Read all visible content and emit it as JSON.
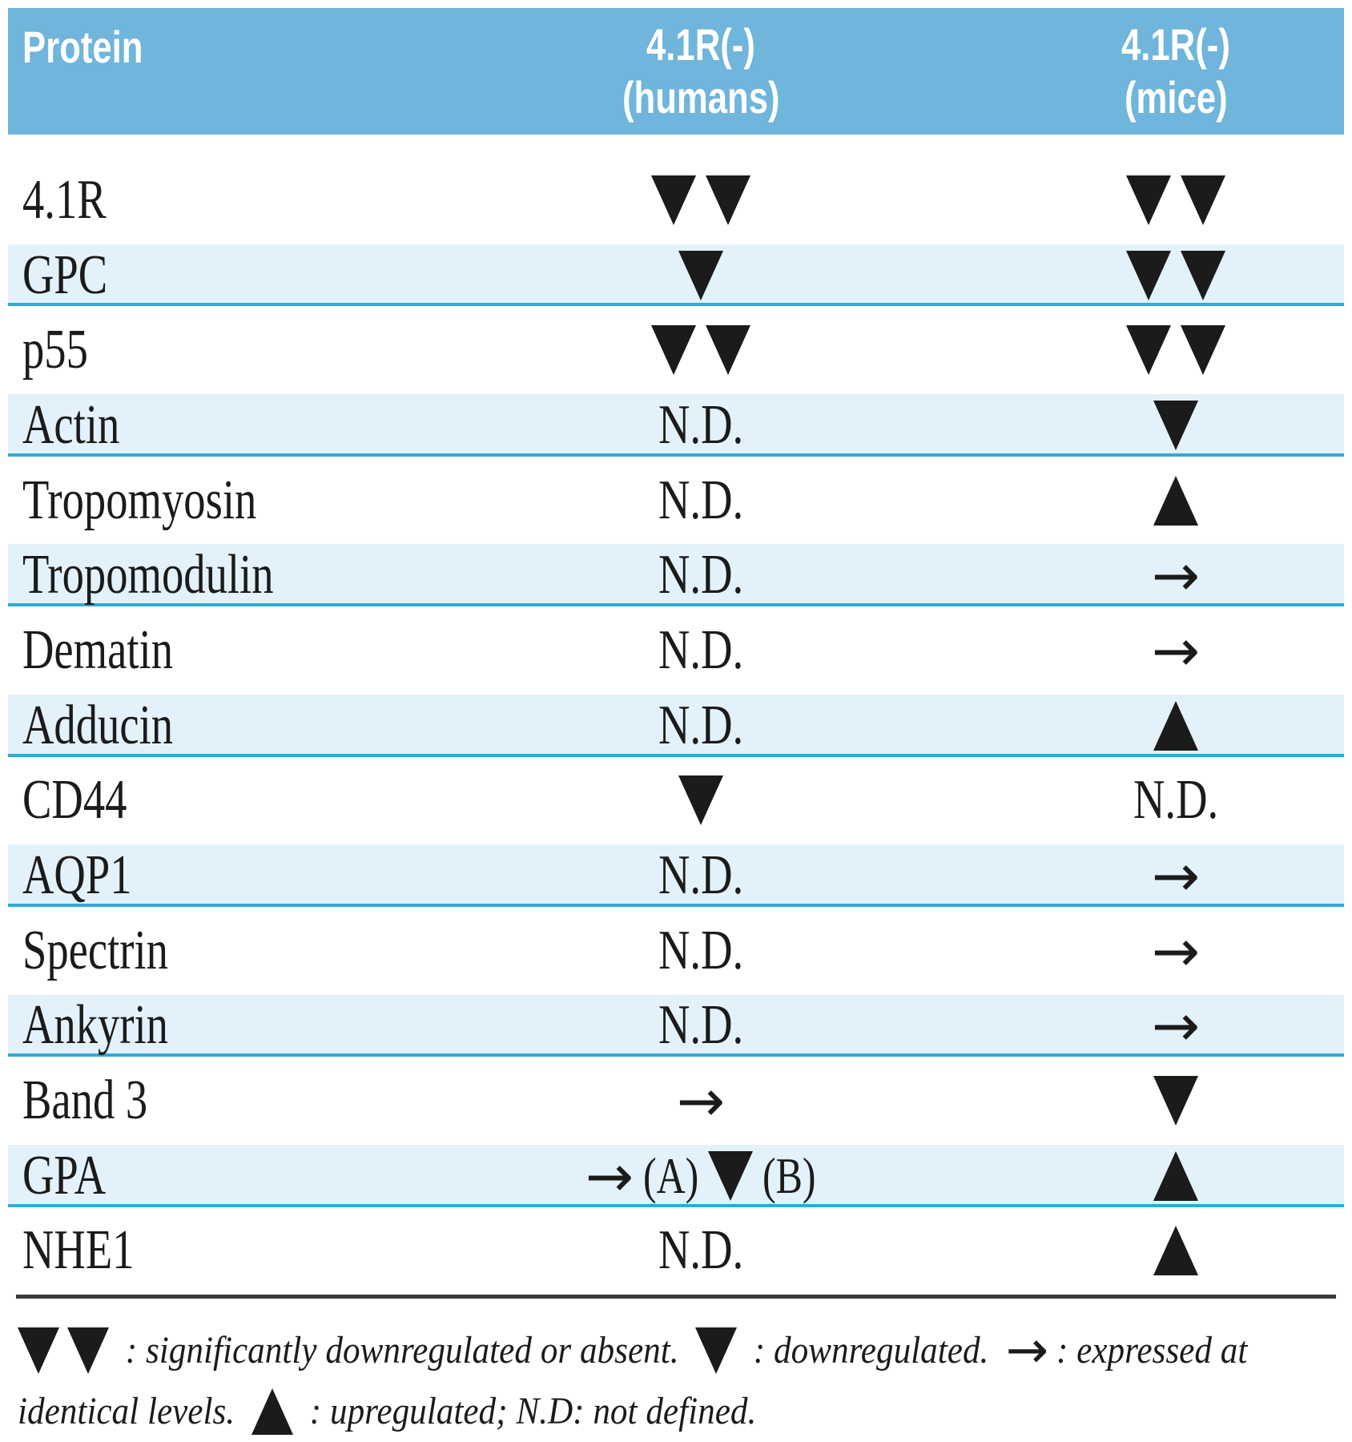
{
  "header": {
    "protein": "Protein",
    "humans_line1": "4.1R(-)",
    "humans_line2": "(humans)",
    "mice_line1": "4.1R(-)",
    "mice_line2": "(mice)"
  },
  "table": {
    "nd_label": "N.D.",
    "rows": [
      {
        "protein": "4.1R",
        "humans": [
          "down",
          "down"
        ],
        "mice": [
          "down",
          "down"
        ]
      },
      {
        "protein": "GPC",
        "humans": [
          "down"
        ],
        "mice": [
          "down",
          "down"
        ]
      },
      {
        "protein": "p55",
        "humans": [
          "down",
          "down"
        ],
        "mice": [
          "down",
          "down"
        ]
      },
      {
        "protein": "Actin",
        "humans": [
          "nd"
        ],
        "mice": [
          "down"
        ]
      },
      {
        "protein": "Tropomyosin",
        "humans": [
          "nd"
        ],
        "mice": [
          "up"
        ]
      },
      {
        "protein": "Tropomodulin",
        "humans": [
          "nd"
        ],
        "mice": [
          "arrow"
        ]
      },
      {
        "protein": "Dematin",
        "humans": [
          "nd"
        ],
        "mice": [
          "arrow"
        ]
      },
      {
        "protein": "Adducin",
        "humans": [
          "nd"
        ],
        "mice": [
          "up"
        ]
      },
      {
        "protein": "CD44",
        "humans": [
          "down"
        ],
        "mice": [
          "nd"
        ]
      },
      {
        "protein": "AQP1",
        "humans": [
          "nd"
        ],
        "mice": [
          "arrow"
        ]
      },
      {
        "protein": "Spectrin",
        "humans": [
          "nd"
        ],
        "mice": [
          "arrow"
        ]
      },
      {
        "protein": "Ankyrin",
        "humans": [
          "nd"
        ],
        "mice": [
          "arrow"
        ]
      },
      {
        "protein": "Band 3",
        "humans": [
          "arrow"
        ],
        "mice": [
          "down"
        ]
      },
      {
        "protein": "GPA",
        "humans": [
          "arrow",
          "(A)",
          "down",
          "(B)"
        ],
        "mice": [
          "up"
        ]
      },
      {
        "protein": "NHE1",
        "humans": [
          "nd"
        ],
        "mice": [
          "up"
        ]
      }
    ]
  },
  "symbols": {
    "arrow": "→",
    "down_triangle": "▼",
    "up_triangle": "▲"
  },
  "legend": {
    "line1": [
      "down",
      "down",
      " : significantly downregulated or absent. ",
      "down",
      " : downregulated. ",
      "arrow",
      ": expressed at"
    ],
    "line2": [
      "identical levels. ",
      "up",
      " : upregulated; N.D: not defined."
    ]
  },
  "colors": {
    "header_bg": "#70b5db",
    "header_text": "#ffffff",
    "row_shaded_bg": "#e3f1fa",
    "row_border": "#2faad5",
    "rule": "#3a3a3a",
    "text": "#1b1b1b"
  }
}
